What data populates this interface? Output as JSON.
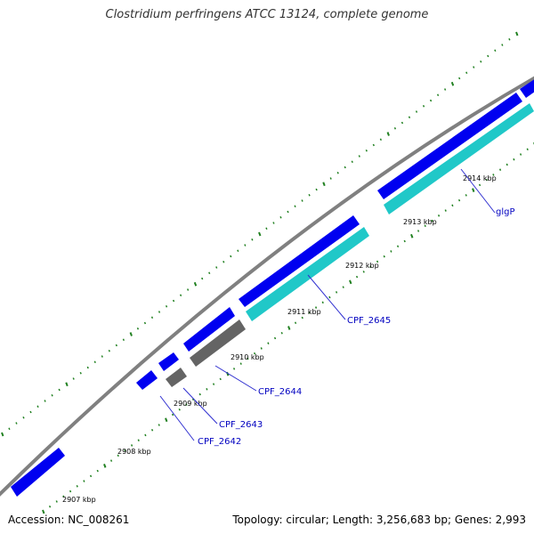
{
  "title": "Clostridium perfringens ATCC 13124, complete genome",
  "accession": "Accession: NC_008261",
  "summary": "Topology: circular; Length: 3,256,683 bp; Genes: 2,993",
  "colors": {
    "background": "#ffffff",
    "backbone": "#808080",
    "forward_cds": "#0000f0",
    "reverse_cds": "#20c8c8",
    "other_feature": "#646464",
    "tick_marks": "#208020",
    "gene_label": "#0000c0",
    "label_line": "#3030d0"
  },
  "ticks": [
    {
      "label": "2907 kbp"
    },
    {
      "label": "2908 kbp"
    },
    {
      "label": "2909 kbp"
    },
    {
      "label": "2910 kbp"
    },
    {
      "label": "2911 kbp"
    },
    {
      "label": "2912 kbp"
    },
    {
      "label": "2913 kbp"
    },
    {
      "label": "2914 kbp"
    }
  ],
  "gene_labels": [
    {
      "name": "CPF_2642"
    },
    {
      "name": "CPF_2643"
    },
    {
      "name": "CPF_2644"
    },
    {
      "name": "CPF_2645"
    },
    {
      "name": "glgP"
    }
  ]
}
